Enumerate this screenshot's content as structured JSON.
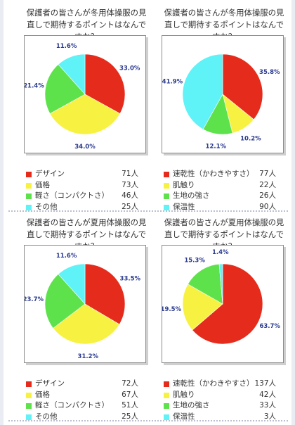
{
  "chart_data": [
    {
      "type": "pie",
      "title": "保護者の皆さんが冬用体操服の見直しで期待するポイントはなんですか？",
      "slices": [
        {
          "label": "デザイン",
          "value": 71,
          "unit": "人",
          "percent_label": "33.0%",
          "color": "#e52c1c"
        },
        {
          "label": "価格",
          "value": 73,
          "unit": "人",
          "percent_label": "34.0%",
          "color": "#f7f242"
        },
        {
          "label": "軽さ（コンパクトさ）",
          "value": 46,
          "unit": "人",
          "percent_label": "21.4%",
          "color": "#5ee24b"
        },
        {
          "label": "その他",
          "value": 25,
          "unit": "人",
          "percent_label": "11.6%",
          "color": "#5ff2f7"
        }
      ]
    },
    {
      "type": "pie",
      "title": "保護者の皆さんが冬用体操服の見直しで期待するポイントはなんですか？",
      "slices": [
        {
          "label": "速乾性（かわきやすさ）",
          "value": 77,
          "unit": "人",
          "percent_label": "35.8%",
          "color": "#e52c1c"
        },
        {
          "label": "肌触り",
          "value": 22,
          "unit": "人",
          "percent_label": "10.2%",
          "color": "#f7f242"
        },
        {
          "label": "生地の強さ",
          "value": 26,
          "unit": "人",
          "percent_label": "12.1%",
          "color": "#5ee24b"
        },
        {
          "label": "保温性",
          "value": 90,
          "unit": "人",
          "percent_label": "41.9%",
          "color": "#5ff2f7"
        }
      ]
    },
    {
      "type": "pie",
      "title": "保護者の皆さんが夏用体操服の見直しで期待するポイントはなんですか？",
      "slices": [
        {
          "label": "デザイン",
          "value": 72,
          "unit": "人",
          "percent_label": "33.5%",
          "color": "#e52c1c"
        },
        {
          "label": "価格",
          "value": 67,
          "unit": "人",
          "percent_label": "31.2%",
          "color": "#f7f242"
        },
        {
          "label": "軽さ（コンパクトさ）",
          "value": 51,
          "unit": "人",
          "percent_label": "23.7%",
          "color": "#5ee24b"
        },
        {
          "label": "その他",
          "value": 25,
          "unit": "人",
          "percent_label": "11.6%",
          "color": "#5ff2f7"
        }
      ]
    },
    {
      "type": "pie",
      "title": "保護者の皆さんが夏用体操服の見直しで期待するポイントはなんですか？",
      "slices": [
        {
          "label": "速乾性（かわきやすさ）",
          "value": 137,
          "unit": "人",
          "percent_label": "63.7%",
          "color": "#e52c1c"
        },
        {
          "label": "肌触り",
          "value": 42,
          "unit": "人",
          "percent_label": "19.5%",
          "color": "#f7f242"
        },
        {
          "label": "生地の強さ",
          "value": 33,
          "unit": "人",
          "percent_label": "15.3%",
          "color": "#5ee24b"
        },
        {
          "label": "保温性",
          "value": 3,
          "unit": "人",
          "percent_label": "1.4%",
          "color": "#5ff2f7"
        }
      ]
    }
  ]
}
